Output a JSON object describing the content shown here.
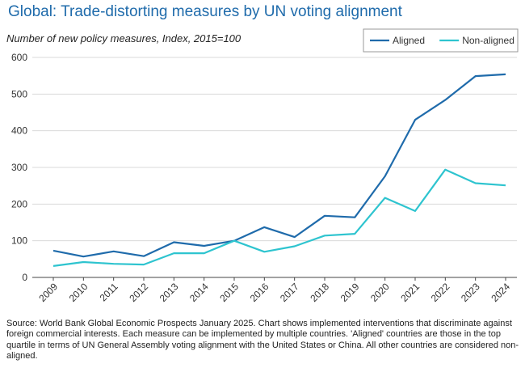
{
  "title": "Global: Trade-distorting measures by UN voting alignment",
  "subtitle": "Number of new policy measures, Index, 2015=100",
  "source": "Source: World Bank Global Economic Prospects January 2025. Chart shows implemented interventions that discriminate against foreign commercial interests. Each measure can be implemented by multiple countries. 'Aligned' countries are those in the top quartile in terms of UN General Assembly voting alignment with the United States or China. All other countries are considered non-aligned.",
  "chart_data": {
    "type": "line",
    "title": "Global: Trade-distorting measures by UN voting alignment",
    "ylabel": "Number of new policy measures, Index, 2015=100",
    "xlabel": "",
    "categories": [
      "2009",
      "2010",
      "2011",
      "2012",
      "2013",
      "2014",
      "2015",
      "2016",
      "2017",
      "2018",
      "2019",
      "2020",
      "2021",
      "2022",
      "2023",
      "2024"
    ],
    "ylim": [
      0,
      600
    ],
    "yticks": [
      0,
      100,
      200,
      300,
      400,
      500,
      600
    ],
    "grid": "horizontal",
    "legend": "top-right",
    "series": [
      {
        "name": "Aligned",
        "color": "#1f6bab",
        "values": [
          73,
          57,
          71,
          58,
          96,
          86,
          100,
          137,
          110,
          168,
          164,
          276,
          430,
          484,
          549,
          554
        ]
      },
      {
        "name": "Non-aligned",
        "color": "#2ec4cf",
        "values": [
          31,
          42,
          37,
          35,
          66,
          66,
          100,
          70,
          85,
          114,
          119,
          217,
          181,
          294,
          257,
          251
        ]
      }
    ]
  }
}
